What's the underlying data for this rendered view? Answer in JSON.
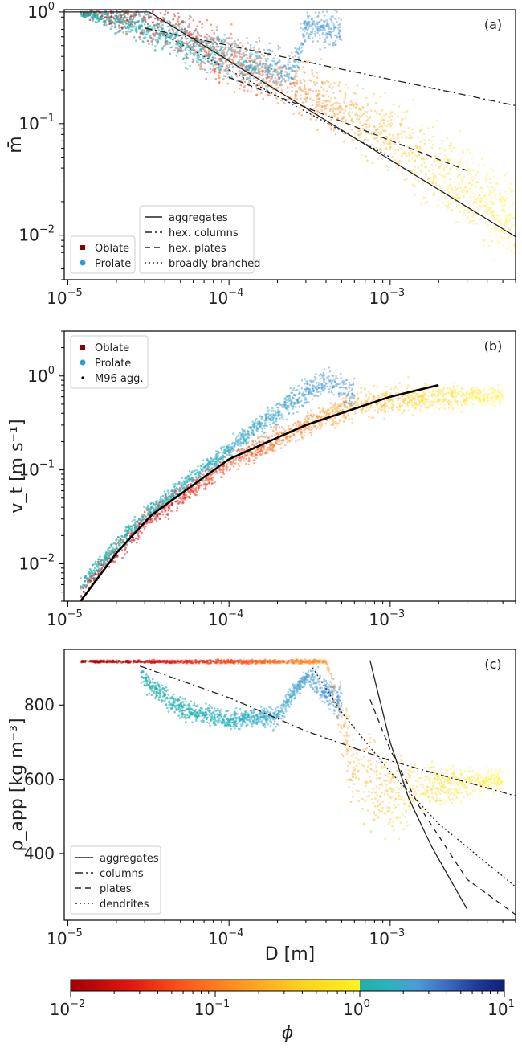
{
  "figure": {
    "panels": [
      "(a)",
      "(b)",
      "(c)"
    ],
    "xlabel": "D [m]",
    "colorbar": {
      "label": "ϕ",
      "ticks": [
        {
          "base": "10",
          "exp": "−2",
          "value": 0.01
        },
        {
          "base": "10",
          "exp": "−1",
          "value": 0.1
        },
        {
          "base": "10",
          "exp": "0",
          "value": 1
        },
        {
          "base": "10",
          "exp": "1",
          "value": 10
        }
      ],
      "colors_oblate": [
        "#a50000",
        "#e3140f",
        "#ff5a1a",
        "#ff9a20",
        "#ffd21c",
        "#fff21e"
      ],
      "colors_prolate": [
        "#1fb0a6",
        "#2ab3c0",
        "#4a9cd8",
        "#3b6cc4",
        "#1f3c9a",
        "#0d1f7a"
      ]
    }
  },
  "chart_data": [
    {
      "type": "scatter",
      "panel": "(a)",
      "ylabel": "m̄",
      "xscale": "log",
      "yscale": "log",
      "xlim": [
        9.5e-06,
        0.006
      ],
      "ylim": [
        0.004,
        1.05
      ],
      "xticks": [
        {
          "base": "10",
          "exp": "−5",
          "value": 1e-05
        },
        {
          "base": "10",
          "exp": "−4",
          "value": 0.0001
        },
        {
          "base": "10",
          "exp": "−3",
          "value": 0.001
        }
      ],
      "yticks": [
        {
          "base": "10",
          "exp": "−2",
          "value": 0.01
        },
        {
          "base": "10",
          "exp": "−1",
          "value": 0.1
        },
        {
          "base": "10",
          "exp": "0",
          "value": 1
        }
      ],
      "legend_markers": [
        {
          "label": "Oblate",
          "color": "#8b0000",
          "marker": "square"
        },
        {
          "label": "Prolate",
          "color": "#2c9fd4",
          "marker": "circle"
        }
      ],
      "legend_markers_position": "lower-left",
      "legend_lines": [
        {
          "label": "aggregates",
          "dash": "solid"
        },
        {
          "label": "hex. columns",
          "dash": "dashdot"
        },
        {
          "label": "hex. plates",
          "dash": "dashed"
        },
        {
          "label": "broadly branched",
          "dash": "dotted"
        }
      ],
      "legend_lines_position": "lower-center",
      "lines": [
        {
          "dash": "solid",
          "x": [
            9.5e-06,
            3.2e-05,
            0.006
          ],
          "y": [
            1.0,
            1.0,
            0.0097
          ]
        },
        {
          "dash": "dashdot",
          "x": [
            3e-05,
            0.006
          ],
          "y": [
            0.72,
            0.145
          ]
        },
        {
          "dash": "dashed",
          "x": [
            0.0001,
            0.003
          ],
          "y": [
            0.26,
            0.038
          ]
        },
        {
          "dash": "dotted",
          "x": [
            4e-05,
            0.001
          ],
          "y": [
            0.62,
            0.05
          ]
        }
      ],
      "scatter_clouds": [
        {
          "shape": "oblate",
          "x": [
            1.2e-05,
            3e-05,
            0.0001,
            0.0004,
            0.0012,
            0.003,
            0.006
          ],
          "y_center": [
            0.98,
            0.85,
            0.38,
            0.16,
            0.065,
            0.028,
            0.012
          ],
          "spread": [
            0.03,
            0.25,
            0.3,
            0.35,
            0.45,
            0.5,
            0.5
          ]
        },
        {
          "shape": "prolate",
          "x": [
            1.2e-05,
            3e-05,
            0.0001,
            0.00025,
            0.0003,
            0.0005
          ],
          "y_center": [
            0.98,
            0.72,
            0.38,
            0.28,
            0.75,
            0.7
          ],
          "spread": [
            0.03,
            0.22,
            0.25,
            0.2,
            0.2,
            0.25
          ]
        }
      ]
    },
    {
      "type": "scatter",
      "panel": "(b)",
      "ylabel": "v_t [m s⁻¹]",
      "xscale": "log",
      "yscale": "log",
      "xlim": [
        9.5e-06,
        0.006
      ],
      "ylim": [
        0.004,
        3.0
      ],
      "xticks": [
        {
          "base": "10",
          "exp": "−5",
          "value": 1e-05
        },
        {
          "base": "10",
          "exp": "−4",
          "value": 0.0001
        },
        {
          "base": "10",
          "exp": "−3",
          "value": 0.001
        }
      ],
      "yticks": [
        {
          "base": "10",
          "exp": "−2",
          "value": 0.01
        },
        {
          "base": "10",
          "exp": "−1",
          "value": 0.1
        },
        {
          "base": "10",
          "exp": "0",
          "value": 1
        }
      ],
      "legend_markers": [
        {
          "label": "Oblate",
          "color": "#8b0000",
          "marker": "square"
        },
        {
          "label": "Prolate",
          "color": "#2c9fd4",
          "marker": "circle"
        },
        {
          "label": "M96 agg.",
          "color": "#000000",
          "marker": "dot"
        }
      ],
      "legend_markers_position": "upper-left",
      "lines": [
        {
          "dash": "solid",
          "thick": true,
          "x": [
            1.2e-05,
            2e-05,
            3.3e-05,
            0.0001,
            0.0003,
            0.001,
            0.002
          ],
          "y": [
            0.004,
            0.013,
            0.033,
            0.13,
            0.3,
            0.6,
            0.8
          ]
        }
      ],
      "scatter_clouds": [
        {
          "shape": "oblate",
          "x": [
            1.2e-05,
            3e-05,
            0.0001,
            0.0003,
            0.0006,
            0.001,
            0.002,
            0.005
          ],
          "y_center": [
            0.005,
            0.028,
            0.12,
            0.3,
            0.5,
            0.55,
            0.6,
            0.6
          ],
          "spread": [
            0.12,
            0.15,
            0.15,
            0.15,
            0.2,
            0.22,
            0.2,
            0.15
          ]
        },
        {
          "shape": "prolate",
          "x": [
            1.2e-05,
            3e-05,
            0.0001,
            0.00025,
            0.0004,
            0.0006
          ],
          "y_center": [
            0.006,
            0.033,
            0.17,
            0.55,
            0.9,
            0.6
          ],
          "spread": [
            0.1,
            0.12,
            0.12,
            0.18,
            0.2,
            0.25
          ]
        }
      ]
    },
    {
      "type": "scatter",
      "panel": "(c)",
      "ylabel": "ρ_app [kg m⁻³]",
      "xscale": "log",
      "yscale": "linear",
      "xlim": [
        9.5e-06,
        0.006
      ],
      "ylim": [
        220,
        950
      ],
      "xticks": [
        {
          "base": "10",
          "exp": "−5",
          "value": 1e-05
        },
        {
          "base": "10",
          "exp": "−4",
          "value": 0.0001
        },
        {
          "base": "10",
          "exp": "−3",
          "value": 0.001
        }
      ],
      "yticks": [
        {
          "label": "400",
          "value": 400
        },
        {
          "label": "600",
          "value": 600
        },
        {
          "label": "800",
          "value": 800
        }
      ],
      "legend_lines": [
        {
          "label": "aggregates",
          "dash": "solid"
        },
        {
          "label": "columns",
          "dash": "dashdot"
        },
        {
          "label": "plates",
          "dash": "dashed"
        },
        {
          "label": "dendrites",
          "dash": "dotted"
        }
      ],
      "legend_lines_position": "lower-left",
      "lines": [
        {
          "dash": "solid",
          "x": [
            0.00075,
            0.001,
            0.0013,
            0.0018,
            0.003
          ],
          "y": [
            920,
            700,
            550,
            420,
            250
          ]
        },
        {
          "dash": "dashdot",
          "x": [
            2.8e-05,
            0.0001,
            0.0003,
            0.001,
            0.006
          ],
          "y": [
            905,
            820,
            730,
            650,
            555
          ]
        },
        {
          "dash": "dashed",
          "x": [
            0.00075,
            0.001,
            0.0015,
            0.003,
            0.006
          ],
          "y": [
            815,
            680,
            530,
            330,
            235
          ]
        },
        {
          "dash": "dotted",
          "x": [
            0.00033,
            0.0005,
            0.001,
            0.002,
            0.006
          ],
          "y": [
            900,
            780,
            620,
            480,
            310
          ]
        }
      ],
      "scatter_clouds": [
        {
          "shape": "oblate",
          "x": [
            1.2e-05,
            0.0001,
            0.0004,
            0.00045,
            0.0006,
            0.001,
            0.002,
            0.005
          ],
          "y_center": [
            917,
            917,
            917,
            830,
            620,
            560,
            580,
            600
          ],
          "spread": [
            3,
            6,
            6,
            60,
            150,
            120,
            60,
            30
          ]
        },
        {
          "shape": "prolate",
          "x": [
            2.8e-05,
            5e-05,
            0.0001,
            0.0002,
            0.0003,
            0.00035,
            0.0005
          ],
          "y_center": [
            880,
            790,
            760,
            770,
            880,
            860,
            800
          ],
          "spread": [
            30,
            35,
            25,
            30,
            25,
            40,
            60
          ]
        }
      ]
    }
  ]
}
